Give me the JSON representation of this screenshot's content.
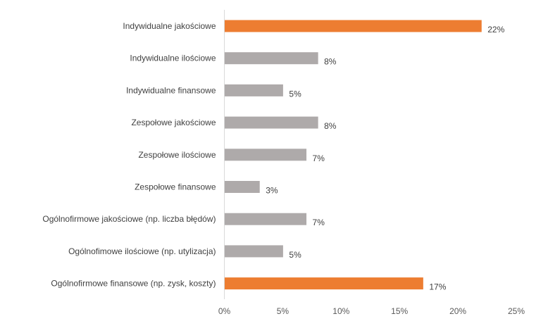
{
  "chart_data": {
    "type": "bar",
    "orientation": "horizontal",
    "categories": [
      "Indywidualne jakościowe",
      "Indywidualne ilościowe",
      "Indywidualne finansowe",
      "Zespołowe jakościowe",
      "Zespołowe ilościowe",
      "Zespołowe finansowe",
      "Ogólnofirmowe jakościowe (np. liczba błędów)",
      "Ogólnofimowe ilościowe (np. utylizacja)",
      "Ogólnofirmowe finansowe (np. zysk, koszty)"
    ],
    "values": [
      22,
      8,
      5,
      8,
      7,
      3,
      7,
      5,
      17
    ],
    "value_labels": [
      "22%",
      "8%",
      "5%",
      "8%",
      "7%",
      "3%",
      "7%",
      "5%",
      "17%"
    ],
    "bar_colors": [
      "#ED7D31",
      "#AEAAAA",
      "#AEAAAA",
      "#AEAAAA",
      "#AEAAAA",
      "#AEAAAA",
      "#AEAAAA",
      "#AEAAAA",
      "#ED7D31"
    ],
    "xlim": [
      0,
      25
    ],
    "x_ticks": [
      0,
      5,
      10,
      15,
      20,
      25
    ],
    "x_tick_labels": [
      "0%",
      "5%",
      "10%",
      "15%",
      "20%",
      "25%"
    ],
    "title": "",
    "xlabel": "",
    "ylabel": "",
    "grid": false,
    "legend": false
  }
}
